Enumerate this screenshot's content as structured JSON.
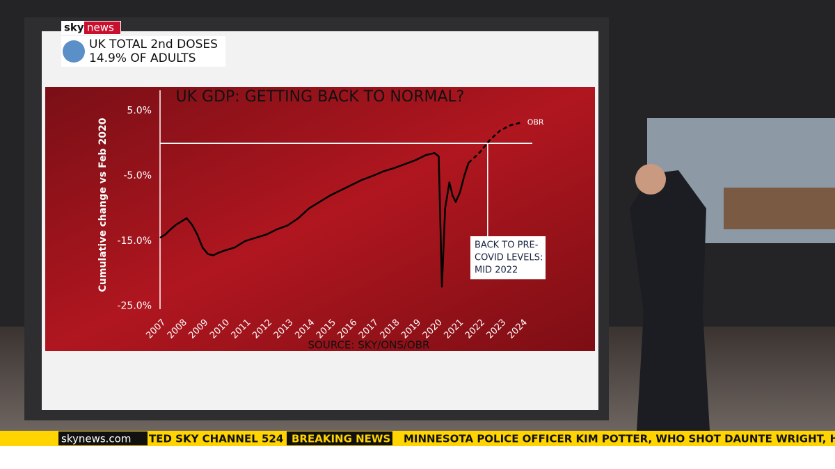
{
  "broadcast": {
    "logo": [
      "sky",
      "news"
    ],
    "strap": [
      "UK TOTAL 2nd DOSES",
      "14.9% OF ADULTS"
    ],
    "ticker": {
      "site": "skynews.com",
      "left": "TED SKY CHANNEL 524",
      "flag": "BREAKING NEWS",
      "headline": "MINNESOTA POLICE OFFICER KIM POTTER, WHO SHOT DAUNTE WRIGHT, HA"
    }
  },
  "chart_data": {
    "type": "line",
    "title": "UK GDP: GETTING BACK TO NORMAL?",
    "y_label": "Cumulative change vs Feb 2020",
    "source": "SOURCE: SKY/ONS/OBR",
    "xlim": [
      2007,
      2024.5
    ],
    "ylim": [
      -26,
      6
    ],
    "xticks": [
      {
        "value": 2007,
        "label": "2007"
      },
      {
        "value": 2008,
        "label": "2008"
      },
      {
        "value": 2009,
        "label": "2009"
      },
      {
        "value": 2010,
        "label": "2010"
      },
      {
        "value": 2011,
        "label": "2011"
      },
      {
        "value": 2012,
        "label": "2012"
      },
      {
        "value": 2013,
        "label": "2013"
      },
      {
        "value": 2014,
        "label": "2014"
      },
      {
        "value": 2015,
        "label": "2015"
      },
      {
        "value": 2016,
        "label": "2016"
      },
      {
        "value": 2017,
        "label": "2017"
      },
      {
        "value": 2018,
        "label": "2018"
      },
      {
        "value": 2019,
        "label": "2019"
      },
      {
        "value": 2020,
        "label": "2020"
      },
      {
        "value": 2021,
        "label": "2021"
      },
      {
        "value": 2022,
        "label": "2022"
      },
      {
        "value": 2023,
        "label": "2023"
      },
      {
        "value": 2024,
        "label": "2024"
      }
    ],
    "yticks": [
      {
        "value": 5,
        "label": "5.0%"
      },
      {
        "value": -5,
        "label": "-5.0%"
      },
      {
        "value": -15,
        "label": "-15.0%"
      },
      {
        "value": -25,
        "label": "-25.0%"
      }
    ],
    "reference_line": 0,
    "series": [
      {
        "color": "#000000",
        "dashed": false,
        "x": [
          2007,
          2007.25,
          2007.5,
          2007.75,
          2008,
          2008.25,
          2008.5,
          2008.75,
          2009,
          2009.25,
          2009.5,
          2009.75,
          2010,
          2010.5,
          2011,
          2011.5,
          2012,
          2012.5,
          2013,
          2013.5,
          2014,
          2014.5,
          2015,
          2015.5,
          2016,
          2016.5,
          2017,
          2017.5,
          2018,
          2018.5,
          2019,
          2019.5,
          2019.9,
          2020.1,
          2020.25,
          2020.4,
          2020.6,
          2020.75,
          2020.9,
          2021.1,
          2021.3,
          2021.5
        ],
        "values": [
          -14.5,
          -14,
          -13.2,
          -12.5,
          -12,
          -11.5,
          -12.5,
          -14,
          -16,
          -17,
          -17.2,
          -16.8,
          -16.5,
          -16,
          -15,
          -14.5,
          -14,
          -13.2,
          -12.6,
          -11.5,
          -10,
          -9,
          -8,
          -7.2,
          -6.4,
          -5.6,
          -5,
          -4.3,
          -3.8,
          -3.2,
          -2.6,
          -1.8,
          -1.5,
          -2,
          -22,
          -10,
          -6,
          -8,
          -9,
          -7.5,
          -5,
          -3
        ]
      },
      {
        "name": "OBR",
        "color": "#000000",
        "dashed": true,
        "x": [
          2021.5,
          2022,
          2022.5,
          2023,
          2023.5,
          2024
        ],
        "values": [
          -3,
          -1.5,
          0.5,
          2,
          2.8,
          3.2
        ]
      }
    ],
    "annotation": {
      "x": 2022.4,
      "lines": [
        "BACK TO PRE-",
        "COVID LEVELS:",
        "MID 2022"
      ]
    }
  }
}
